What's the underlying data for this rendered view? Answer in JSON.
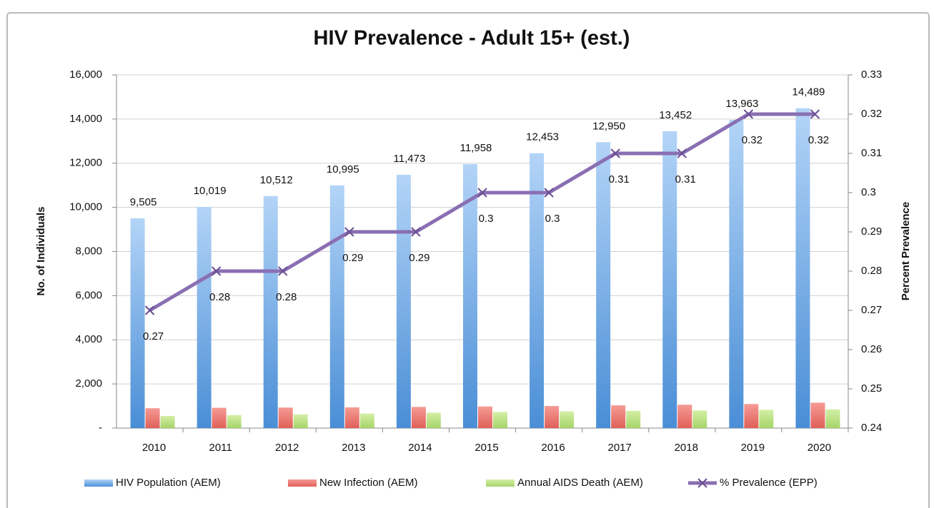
{
  "chart_data": {
    "type": "bar",
    "title": "HIV Prevalence - Adult 15+ (est.)",
    "ylabel": "No. of Individuals",
    "y2label": "Percent Prevalence",
    "categories": [
      "2010",
      "2011",
      "2012",
      "2013",
      "2014",
      "2015",
      "2016",
      "2017",
      "2018",
      "2019",
      "2020"
    ],
    "series": [
      {
        "name": "HIV Population (AEM)",
        "type": "bar",
        "color": "#6aa8e8",
        "values": [
          9505,
          10019,
          10512,
          10995,
          11473,
          11958,
          12453,
          12950,
          13452,
          13963,
          14489
        ],
        "value_labels": [
          "9,505",
          "10,019",
          "10,512",
          "10,995",
          "11,473",
          "11,958",
          "12,453",
          "12,950",
          "13,452",
          "13,963",
          "14,489"
        ]
      },
      {
        "name": "New Infection (AEM)",
        "type": "bar",
        "color": "#ec7b74",
        "values": [
          900,
          920,
          930,
          940,
          960,
          980,
          1000,
          1030,
          1060,
          1090,
          1150
        ]
      },
      {
        "name": "Annual AIDS Death (AEM)",
        "type": "bar",
        "color": "#b9e07e",
        "values": [
          550,
          590,
          620,
          660,
          700,
          730,
          760,
          780,
          800,
          830,
          850
        ]
      },
      {
        "name": "% Prevalence (EPP)",
        "type": "line",
        "axis": "y2",
        "color": "#8a6fb3",
        "values": [
          0.27,
          0.28,
          0.28,
          0.29,
          0.29,
          0.3,
          0.3,
          0.31,
          0.31,
          0.32,
          0.32
        ]
      }
    ],
    "ylim": [
      0,
      16000
    ],
    "yticks": [
      {
        "value": 0,
        "label": "-"
      },
      {
        "value": 2000,
        "label": "2,000"
      },
      {
        "value": 4000,
        "label": "4,000"
      },
      {
        "value": 6000,
        "label": "6,000"
      },
      {
        "value": 8000,
        "label": "8,000"
      },
      {
        "value": 10000,
        "label": "10,000"
      },
      {
        "value": 12000,
        "label": "12,000"
      },
      {
        "value": 14000,
        "label": "14,000"
      },
      {
        "value": 16000,
        "label": "16,000"
      }
    ],
    "y2lim": [
      0.24,
      0.33
    ],
    "y2ticks": [
      0.24,
      0.25,
      0.26,
      0.27,
      0.28,
      0.29,
      0.3,
      0.31,
      0.32,
      0.33
    ],
    "grid": true,
    "legend": "bottom"
  }
}
